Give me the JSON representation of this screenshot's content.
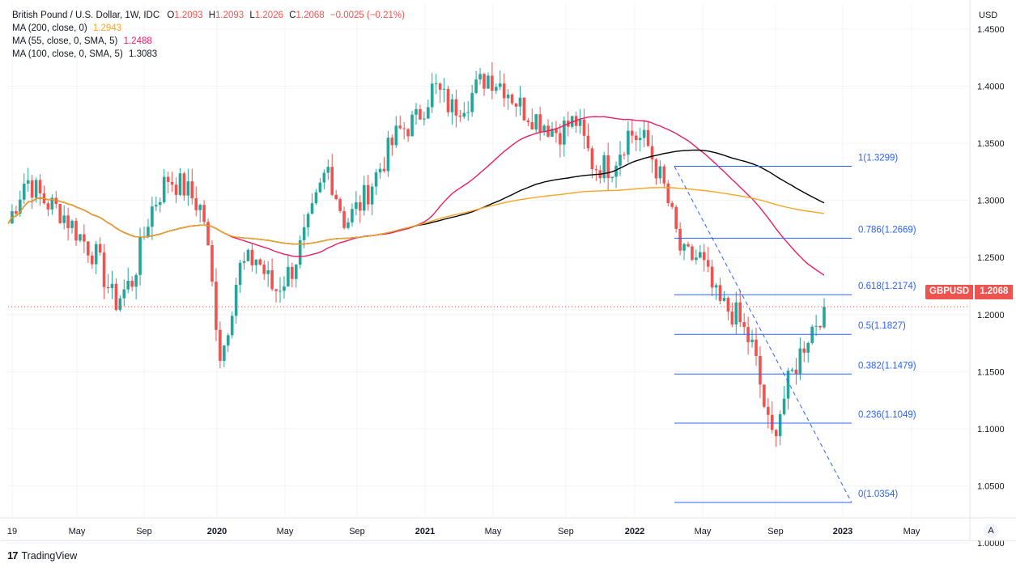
{
  "legend": {
    "title": "British Pound / U.S. Dollar, 1W, IDC",
    "o_label": "O",
    "o_value": "1.2093",
    "h_label": "H",
    "h_value": "1.2093",
    "l_label": "L",
    "l_value": "1.2026",
    "c_label": "C",
    "c_value": "1.2068",
    "change": "−0.0025 (−0.21%)",
    "ma1_label": "MA (200, close, 0)",
    "ma1_value": "1.2943",
    "ma2_label": "MA (55, close, 0, SMA, 5)",
    "ma2_value": "1.2488",
    "ma3_label": "MA (100, close, 0, SMA, 5)",
    "ma3_value": "1.3083"
  },
  "price_tag": {
    "symbol": "GBPUSD",
    "price": "1.2068"
  },
  "branding": "TradingView",
  "auto_button": "A",
  "colors": {
    "up": "#26a69a",
    "down": "#ef5350",
    "ma200": "#f5a623",
    "ma55": "#e91e63",
    "ma100": "#000000",
    "fib": "#2962ff",
    "grid": "#f0f3fa"
  },
  "chart_data": {
    "type": "candlestick",
    "currency": "USD",
    "ylim": [
      1.0,
      1.45
    ],
    "y_ticks": [
      "1.4500",
      "1.4000",
      "1.3500",
      "1.3000",
      "1.2500",
      "1.2000",
      "1.1500",
      "1.1000",
      "1.0500",
      "1.0000"
    ],
    "x_ticks": [
      "19",
      "May",
      "Sep",
      "2020",
      "May",
      "Sep",
      "2021",
      "May",
      "Sep",
      "2022",
      "May",
      "Sep",
      "2023",
      "May"
    ],
    "last_close": 1.2068,
    "fib_levels": [
      {
        "label": "1(1.3299)",
        "value": 1.3299
      },
      {
        "label": "0.786(1.2669)",
        "value": 1.2669
      },
      {
        "label": "0.618(1.2174)",
        "value": 1.2174
      },
      {
        "label": "0.5(1.1827)",
        "value": 1.1827
      },
      {
        "label": "0.382(1.1479)",
        "value": 1.1479
      },
      {
        "label": "0.236(1.1049)",
        "value": 1.1049
      },
      {
        "label": "0(1.0354)",
        "value": 1.0354
      }
    ],
    "anchors": [
      [
        "2019-01",
        1.28
      ],
      [
        "2019-03",
        1.32
      ],
      [
        "2019-04",
        1.3
      ],
      [
        "2019-05",
        1.29
      ],
      [
        "2019-06",
        1.27
      ],
      [
        "2019-07",
        1.25
      ],
      [
        "2019-08",
        1.21
      ],
      [
        "2019-09",
        1.23
      ],
      [
        "2019-10",
        1.29
      ],
      [
        "2019-12",
        1.32
      ],
      [
        "2020-01",
        1.31
      ],
      [
        "2020-02",
        1.29
      ],
      [
        "2020-03",
        1.16
      ],
      [
        "2020-03b",
        1.24
      ],
      [
        "2020-04",
        1.25
      ],
      [
        "2020-05",
        1.22
      ],
      [
        "2020-06",
        1.24
      ],
      [
        "2020-07",
        1.28
      ],
      [
        "2020-08",
        1.33
      ],
      [
        "2020-09",
        1.28
      ],
      [
        "2020-10",
        1.3
      ],
      [
        "2020-11",
        1.33
      ],
      [
        "2020-12",
        1.36
      ],
      [
        "2021-01",
        1.37
      ],
      [
        "2021-02",
        1.4
      ],
      [
        "2021-03",
        1.38
      ],
      [
        "2021-04",
        1.39
      ],
      [
        "2021-05",
        1.41
      ],
      [
        "2021-06",
        1.4
      ],
      [
        "2021-07",
        1.38
      ],
      [
        "2021-08",
        1.37
      ],
      [
        "2021-09",
        1.36
      ],
      [
        "2021-10",
        1.37
      ],
      [
        "2021-11",
        1.33
      ],
      [
        "2021-12",
        1.33
      ],
      [
        "2022-01",
        1.36
      ],
      [
        "2022-02",
        1.35
      ],
      [
        "2022-03",
        1.31
      ],
      [
        "2022-04",
        1.25
      ],
      [
        "2022-05",
        1.25
      ],
      [
        "2022-06",
        1.21
      ],
      [
        "2022-07",
        1.2
      ],
      [
        "2022-08",
        1.17
      ],
      [
        "2022-09",
        1.09
      ],
      [
        "2022-10",
        1.14
      ],
      [
        "2022-11",
        1.18
      ],
      [
        "2022-12",
        1.2068
      ]
    ],
    "ma200_value": 1.2943,
    "ma55_value": 1.2488,
    "ma100_value": 1.3083
  }
}
